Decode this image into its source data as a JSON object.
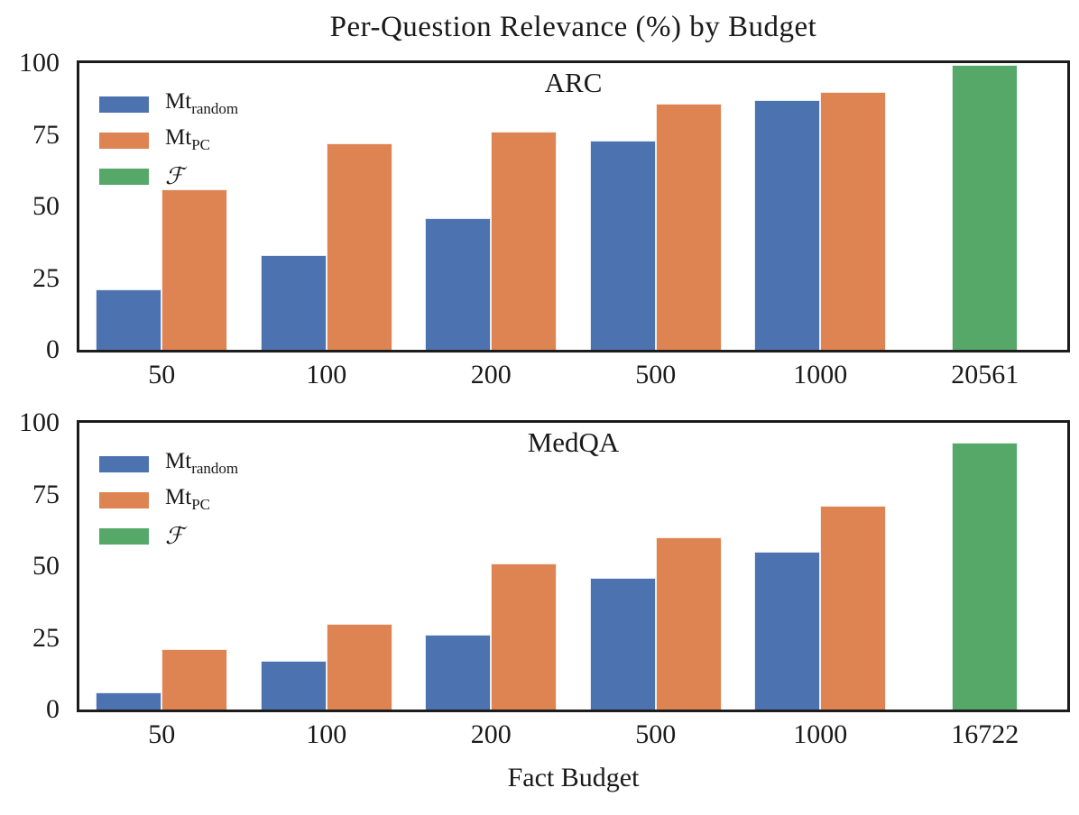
{
  "title": "Per-Question Relevance (%) by Budget",
  "xlabel": "Fact Budget",
  "colors": {
    "mt_random": "#4C72B0",
    "mt_pc": "#DD8452",
    "f": "#55A868",
    "spine": "#1c1c1c",
    "text": "#1a1a1a"
  },
  "legend": {
    "position": "upper-left",
    "items": [
      {
        "label_main": "Mt",
        "label_sub": "random",
        "color": "#4C72B0"
      },
      {
        "label_main": "Mt",
        "label_sub": "PC",
        "color": "#DD8452"
      },
      {
        "label_main": "ℱ",
        "label_sub": "",
        "color": "#55A868",
        "calligraphic": true
      }
    ]
  },
  "chart_data": [
    {
      "type": "bar",
      "subplot_title": "ARC",
      "categories": [
        "50",
        "100",
        "200",
        "500",
        "1000",
        "20561"
      ],
      "series": [
        {
          "name": "Mt_random",
          "color": "#4C72B0",
          "values": [
            21,
            33,
            46,
            73,
            87,
            null
          ]
        },
        {
          "name": "Mt_PC",
          "color": "#DD8452",
          "values": [
            56,
            72,
            76,
            86,
            90,
            null
          ]
        },
        {
          "name": "F",
          "color": "#55A868",
          "values": [
            null,
            null,
            null,
            null,
            null,
            99.5
          ]
        }
      ],
      "ylim": [
        0,
        100
      ],
      "yticks": [
        0,
        25,
        50,
        75,
        100
      ],
      "grid": false,
      "legend_shown": true
    },
    {
      "type": "bar",
      "subplot_title": "MedQA",
      "categories": [
        "50",
        "100",
        "200",
        "500",
        "1000",
        "16722"
      ],
      "series": [
        {
          "name": "Mt_random",
          "color": "#4C72B0",
          "values": [
            6,
            17,
            26,
            46,
            55,
            null
          ]
        },
        {
          "name": "Mt_PC",
          "color": "#DD8452",
          "values": [
            21,
            30,
            51,
            60,
            71,
            null
          ]
        },
        {
          "name": "F",
          "color": "#55A868",
          "values": [
            null,
            null,
            null,
            null,
            null,
            93
          ]
        }
      ],
      "ylim": [
        0,
        100
      ],
      "yticks": [
        0,
        25,
        50,
        75,
        100
      ],
      "grid": false,
      "legend_shown": true
    }
  ],
  "layout": {
    "plot_tops": [
      67,
      466
    ],
    "xtick_tops": [
      394,
      793
    ]
  }
}
